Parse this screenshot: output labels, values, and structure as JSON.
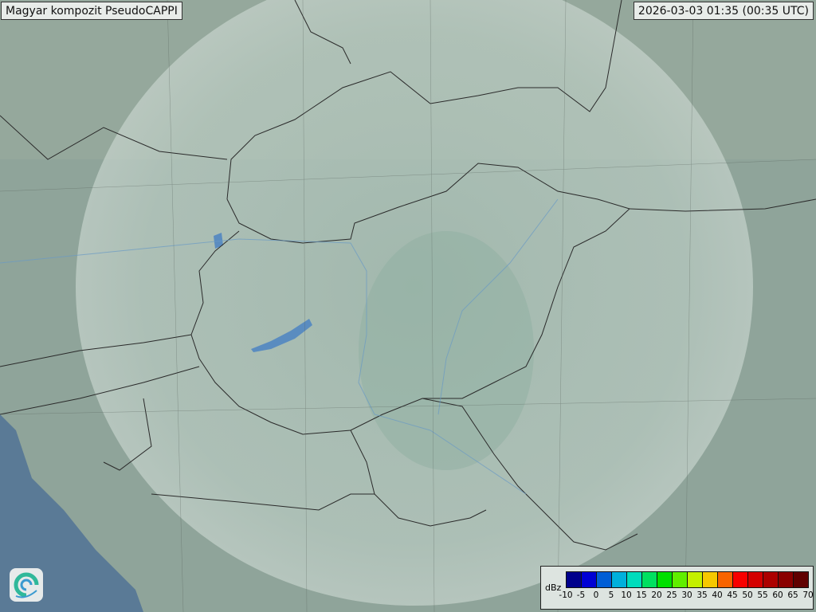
{
  "title": "Magyar kompozit  PseudoCAPPI",
  "timestamp": "2026-03-03 01:35 (00:35 UTC)",
  "legend": {
    "unit": "dBz",
    "ticks": [
      "-10",
      "-5",
      "0",
      "5",
      "10",
      "15",
      "20",
      "25",
      "30",
      "35",
      "40",
      "45",
      "50",
      "55",
      "60",
      "65",
      "70"
    ],
    "colors": [
      "#00008c",
      "#0000d4",
      "#005ed6",
      "#00b0dc",
      "#00dcbc",
      "#00e060",
      "#00e000",
      "#60ee00",
      "#c4f000",
      "#f6c800",
      "#f86400",
      "#f80000",
      "#d40000",
      "#ac0000",
      "#8a0000",
      "#600000"
    ]
  },
  "map": {
    "land_color": "#8fa49a",
    "radar_coverage_color": "#c9d8d0",
    "sea_color": "#5a7a96",
    "lake_color": "#5a8cc0",
    "border_color": "#2a2a2a"
  },
  "logo": {
    "name": "swirl-logo-icon"
  }
}
